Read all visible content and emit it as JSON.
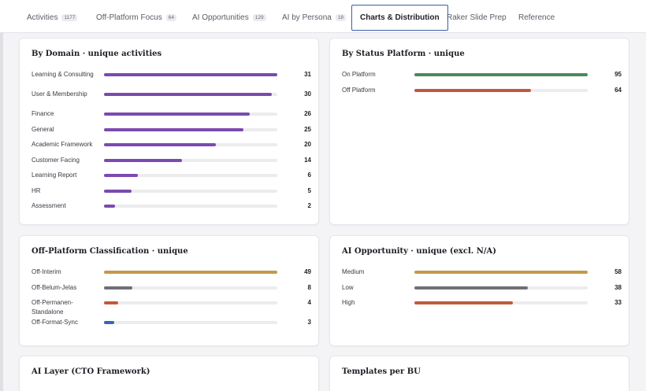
{
  "tabs": [
    {
      "label": "Activities",
      "count": "1177"
    },
    {
      "label": "Off-Platform Focus",
      "count": "64"
    },
    {
      "label": "AI Opportunities",
      "count": "129"
    },
    {
      "label": "AI by Persona",
      "count": "18"
    },
    {
      "label": "Charts & Distribution",
      "count": "",
      "active": true
    },
    {
      "label": "Raker Slide Prep",
      "count": ""
    },
    {
      "label": "Reference",
      "count": ""
    }
  ],
  "colors": {
    "purple": "#7b4ab0",
    "green": "#4a8a5e",
    "red": "#c2593f",
    "gold": "#c39a48",
    "gray": "#6f6f78",
    "blue": "#3a63b4"
  },
  "cards": [
    {
      "title": "By Domain · unique activities",
      "max": 31,
      "rows": [
        {
          "label": "Learning & Consulting",
          "value": 31,
          "color": "purple"
        },
        {
          "label": "User & Membership",
          "value": 30,
          "color": "purple"
        },
        {
          "label": "Finance",
          "value": 26,
          "color": "purple"
        },
        {
          "label": "General",
          "value": 25,
          "color": "purple"
        },
        {
          "label": "Academic Framework",
          "value": 20,
          "color": "purple"
        },
        {
          "label": "Customer Facing",
          "value": 14,
          "color": "purple"
        },
        {
          "label": "Learning Report",
          "value": 6,
          "color": "purple"
        },
        {
          "label": "HR",
          "value": 5,
          "color": "purple"
        },
        {
          "label": "Assessment",
          "value": 2,
          "color": "purple"
        }
      ]
    },
    {
      "title": "By Status Platform · unique",
      "max": 95,
      "rows": [
        {
          "label": "On Platform",
          "value": 95,
          "color": "green"
        },
        {
          "label": "Off Platform",
          "value": 64,
          "color": "red"
        }
      ]
    },
    {
      "title": "Off-Platform Classification · unique",
      "max": 49,
      "rows": [
        {
          "label": "Off-Interim",
          "value": 49,
          "color": "gold"
        },
        {
          "label": "Off-Belum-Jelas",
          "value": 8,
          "color": "gray"
        },
        {
          "label": "Off-Permanen-Standalone",
          "value": 4,
          "color": "red"
        },
        {
          "label": "Off-Format-Sync",
          "value": 3,
          "color": "blue"
        }
      ]
    },
    {
      "title": "AI Opportunity · unique (excl. N/A)",
      "max": 58,
      "rows": [
        {
          "label": "Medium",
          "value": 58,
          "color": "gold"
        },
        {
          "label": "Low",
          "value": 38,
          "color": "gray"
        },
        {
          "label": "High",
          "value": 33,
          "color": "red"
        }
      ]
    },
    {
      "title": "AI Layer (CTO Framework)",
      "max": 1,
      "rows": []
    },
    {
      "title": "Templates per BU",
      "max": 1,
      "rows": []
    }
  ]
}
